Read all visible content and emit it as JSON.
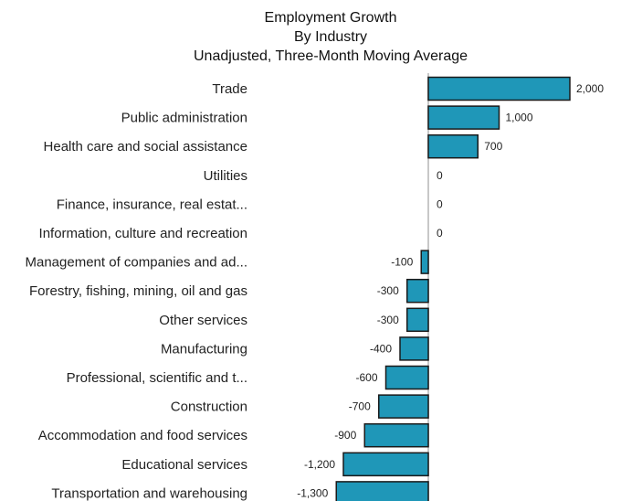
{
  "chart_data": {
    "type": "bar",
    "orientation": "horizontal",
    "title_lines": [
      "Employment Growth",
      "By Industry",
      "Unadjusted, Three-Month Moving Average"
    ],
    "categories": [
      "Trade",
      "Public administration",
      "Health care and social assistance",
      "Utilities",
      "Finance, insurance, real estat...",
      "Information, culture and recreation",
      "Management of companies and ad...",
      "Forestry, fishing, mining, oil and gas",
      "Other services",
      "Manufacturing",
      "Professional, scientific and t...",
      "Construction",
      "Accommodation and food services",
      "Educational services",
      "Transportation and warehousing"
    ],
    "values": [
      2000,
      1000,
      700,
      0,
      0,
      0,
      -100,
      -300,
      -300,
      -400,
      -600,
      -700,
      -900,
      -1200,
      -1300
    ],
    "value_labels": [
      "2,000",
      "1,000",
      "700",
      "0",
      "0",
      "0",
      "-100",
      "-300",
      "-300",
      "-400",
      "-600",
      "-700",
      "-900",
      "-1,200",
      "-1,300"
    ],
    "bar_color": "#1f97b8",
    "bar_edge_color": "#1a1a1a",
    "zero_line_color": "#c8c8c8",
    "grid": false
  }
}
